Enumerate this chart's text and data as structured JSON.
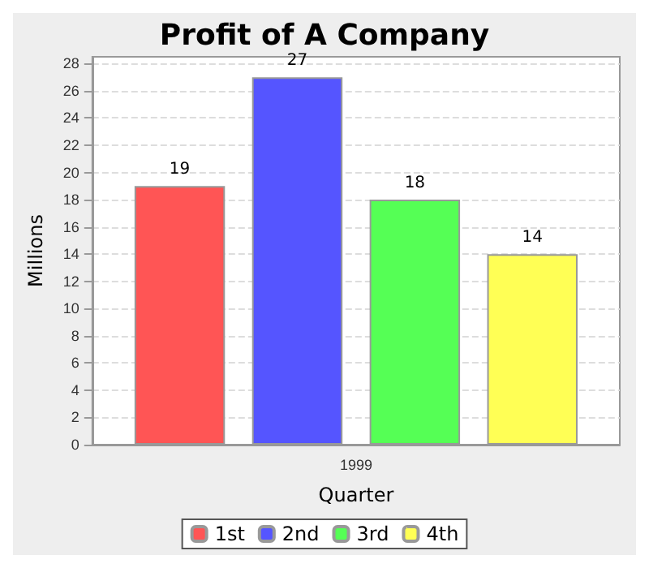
{
  "chart_data": {
    "type": "bar",
    "title": "Profit of A Company",
    "xlabel": "Quarter",
    "ylabel": "Millions",
    "categories": [
      "1999"
    ],
    "series": [
      {
        "name": "1st",
        "color": "#ff5555",
        "values": [
          19
        ]
      },
      {
        "name": "2nd",
        "color": "#5555ff",
        "values": [
          27
        ]
      },
      {
        "name": "3rd",
        "color": "#55ff55",
        "values": [
          18
        ]
      },
      {
        "name": "4th",
        "color": "#ffff55",
        "values": [
          14
        ]
      }
    ],
    "ylim": [
      0,
      28.5
    ],
    "yticks": [
      0,
      2,
      4,
      6,
      8,
      10,
      12,
      14,
      16,
      18,
      20,
      22,
      24,
      26,
      28
    ],
    "grid": "y",
    "legend": "bottom",
    "data_labels": true
  }
}
